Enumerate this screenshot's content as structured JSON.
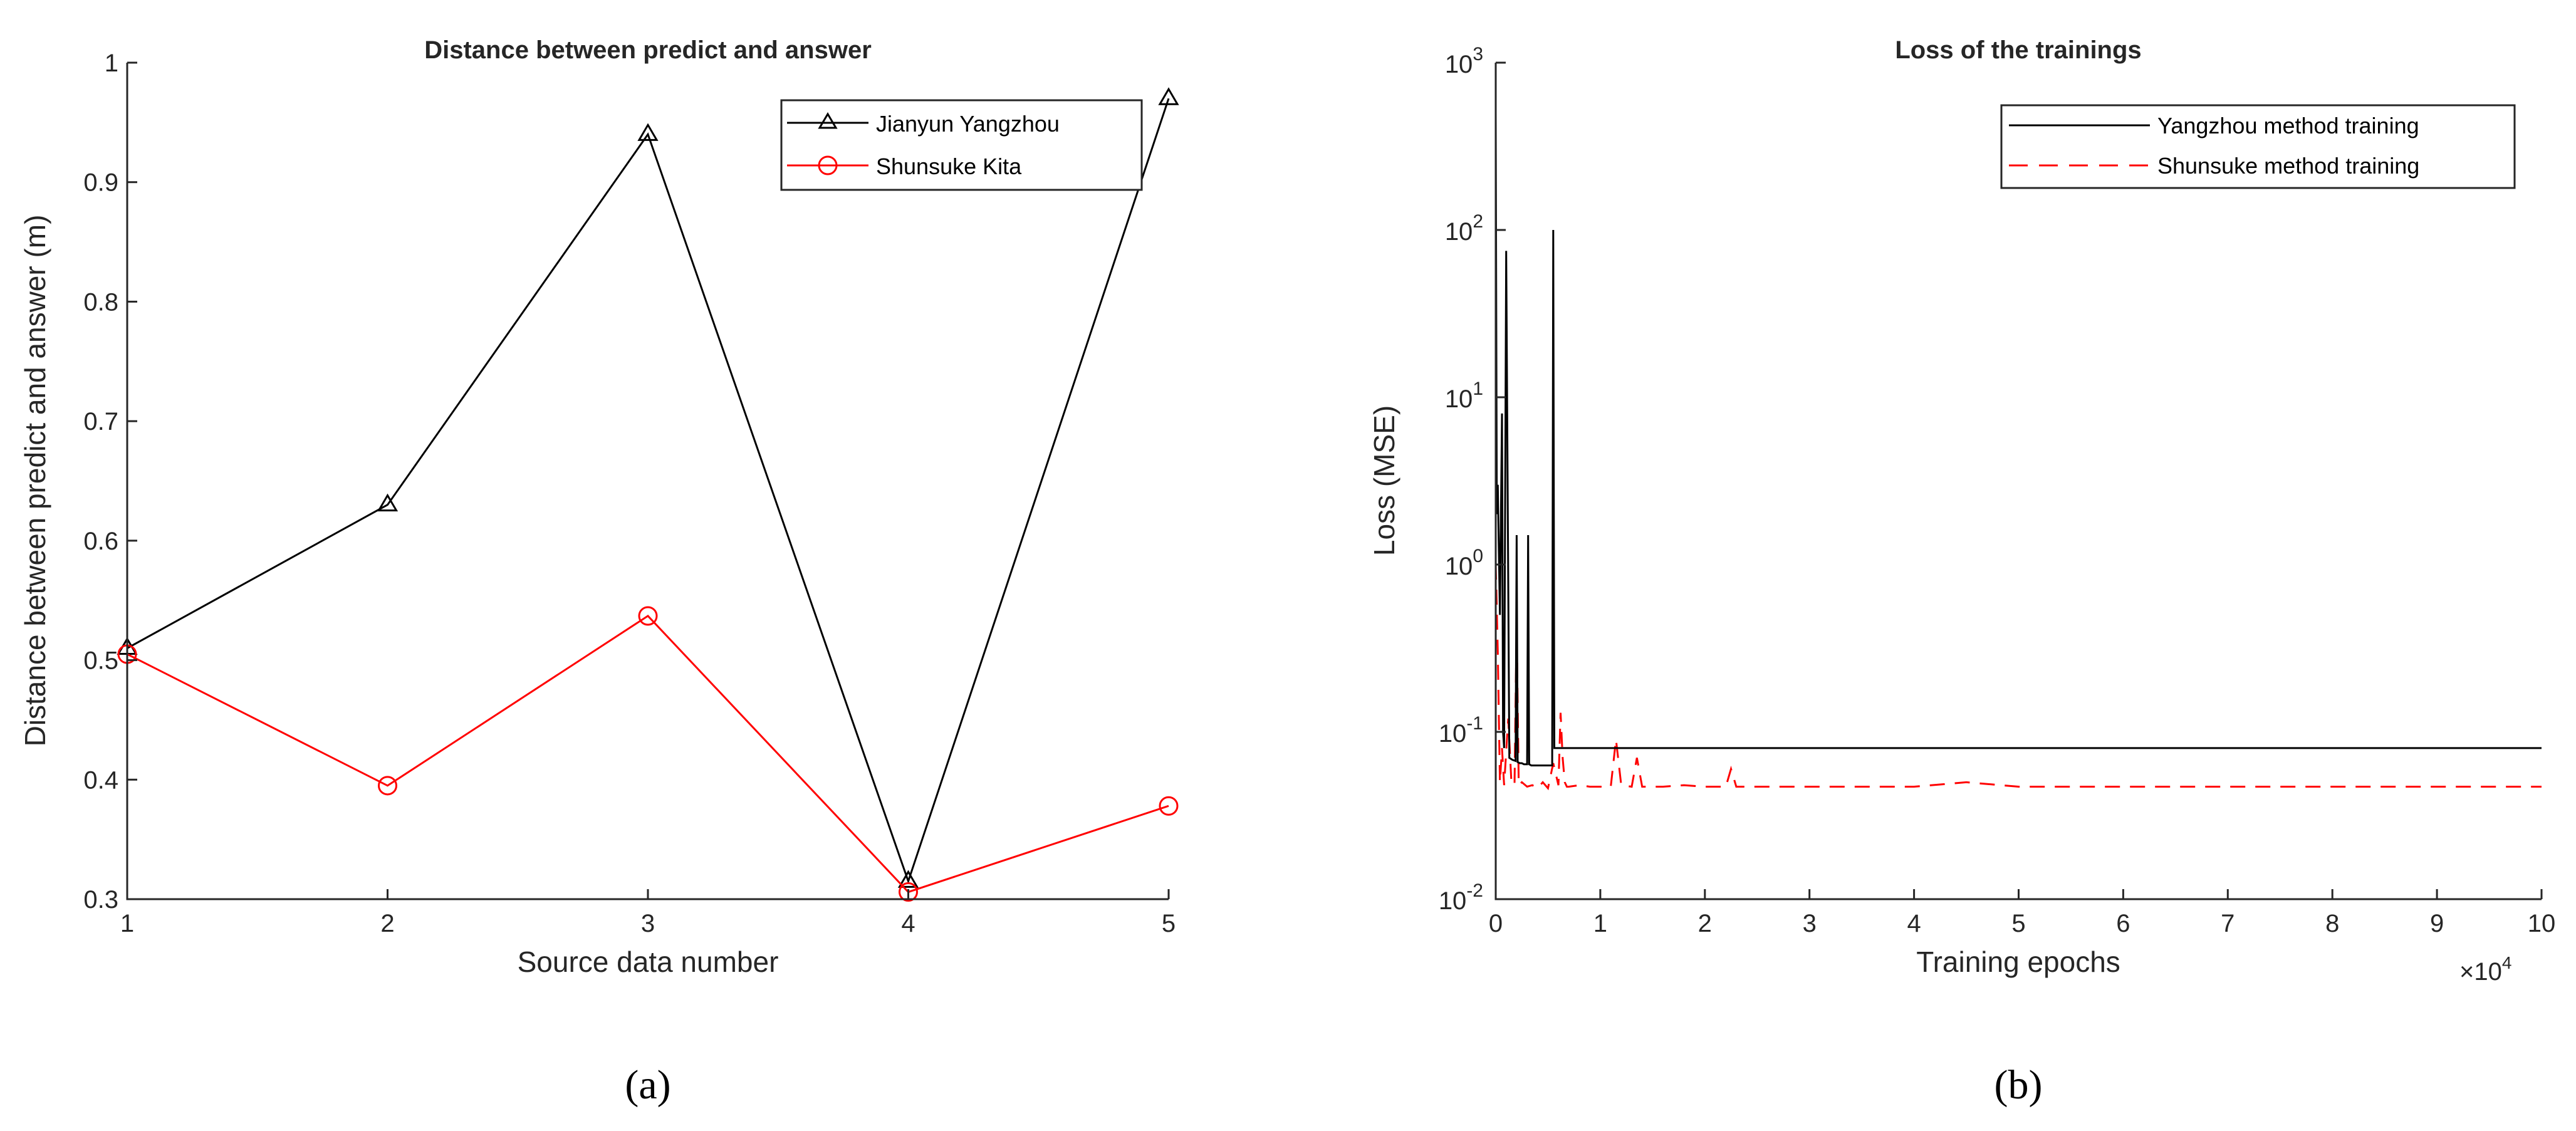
{
  "chart_data": [
    {
      "type": "line",
      "panel_label": "(a)",
      "title": "Distance between predict and answer",
      "xlabel": "Source data number",
      "ylabel": "Distance between predict and answer (m)",
      "xlim": [
        1,
        5
      ],
      "ylim": [
        0.3,
        1
      ],
      "xticks": [
        "1",
        "2",
        "3",
        "4",
        "5"
      ],
      "yticks": [
        "0.3",
        "0.4",
        "0.5",
        "0.6",
        "0.7",
        "0.8",
        "0.9",
        "1"
      ],
      "legend_position": "top-right",
      "grid": false,
      "x": [
        1,
        2,
        3,
        4,
        5
      ],
      "series": [
        {
          "name": "Jianyun Yangzhou",
          "values": [
            0.51,
            0.63,
            0.94,
            0.315,
            0.97
          ],
          "color": "#000000",
          "marker": "triangle"
        },
        {
          "name": "Shunsuke Kita",
          "values": [
            0.505,
            0.395,
            0.537,
            0.306,
            0.378
          ],
          "color": "#ff0000",
          "marker": "circle"
        }
      ]
    },
    {
      "type": "line",
      "panel_label": "(b)",
      "title": "Loss of the trainings",
      "xlabel": "Training epochs",
      "ylabel": "Loss (MSE)",
      "x_scale_label": "×10",
      "x_scale_exponent": "4",
      "xlim": [
        0,
        100000
      ],
      "ylim": [
        0.01,
        1000
      ],
      "yscale": "log",
      "xticks": [
        "0",
        "1",
        "2",
        "3",
        "4",
        "5",
        "6",
        "7",
        "8",
        "9",
        "10"
      ],
      "yticks": [
        {
          "base": "10",
          "exp": "-2"
        },
        {
          "base": "10",
          "exp": "-1"
        },
        {
          "base": "10",
          "exp": "0"
        },
        {
          "base": "10",
          "exp": "1"
        },
        {
          "base": "10",
          "exp": "2"
        },
        {
          "base": "10",
          "exp": "3"
        }
      ],
      "legend_position": "top-right",
      "grid": false,
      "series": [
        {
          "name": "Yangzhou method training",
          "color": "#000000",
          "style": "solid",
          "x": [
            0,
            100,
            200,
            400,
            600,
            700,
            800,
            1000,
            1300,
            1600,
            1900,
            2000,
            2100,
            2300,
            2500,
            2700,
            3000,
            3100,
            3200,
            3400,
            3600,
            3800,
            4000,
            4200,
            4300,
            4400,
            4600,
            4800,
            5000,
            5200,
            5400,
            5500,
            5600,
            5800,
            6000,
            8000,
            100000
          ],
          "values": [
            500,
            2,
            3,
            0.5,
            8,
            0.1,
            0.08,
            75,
            0.07,
            0.068,
            0.067,
            1.5,
            0.066,
            0.065,
            0.065,
            0.064,
            0.064,
            1.5,
            0.064,
            0.063,
            0.063,
            0.063,
            0.063,
            0.063,
            0.063,
            0.063,
            0.063,
            0.063,
            0.063,
            0.063,
            0.063,
            100,
            0.08,
            0.08,
            0.08,
            0.08,
            0.08
          ]
        },
        {
          "name": "Shunsuke method training",
          "color": "#ff0000",
          "style": "dashed",
          "x": [
            0,
            200,
            400,
            600,
            800,
            1200,
            1500,
            1800,
            2000,
            2200,
            2500,
            3000,
            3500,
            4000,
            4500,
            5000,
            5500,
            6000,
            6200,
            6400,
            6600,
            6800,
            7000,
            8000,
            9000,
            10000,
            11000,
            11500,
            12000,
            13000,
            13500,
            14000,
            16000,
            18000,
            20000,
            22000,
            22500,
            23000,
            30000,
            40000,
            45000,
            50000,
            60000,
            70000,
            80000,
            90000,
            100000
          ],
          "values": [
            1.0,
            0.3,
            0.05,
            0.08,
            0.048,
            0.12,
            0.05,
            0.048,
            0.45,
            0.048,
            0.05,
            0.047,
            0.048,
            0.046,
            0.05,
            0.046,
            0.065,
            0.048,
            0.13,
            0.07,
            0.05,
            0.047,
            0.047,
            0.048,
            0.047,
            0.047,
            0.047,
            0.09,
            0.048,
            0.047,
            0.07,
            0.047,
            0.047,
            0.048,
            0.047,
            0.047,
            0.06,
            0.047,
            0.047,
            0.047,
            0.05,
            0.047,
            0.047,
            0.047,
            0.047,
            0.047,
            0.047
          ]
        }
      ]
    }
  ]
}
